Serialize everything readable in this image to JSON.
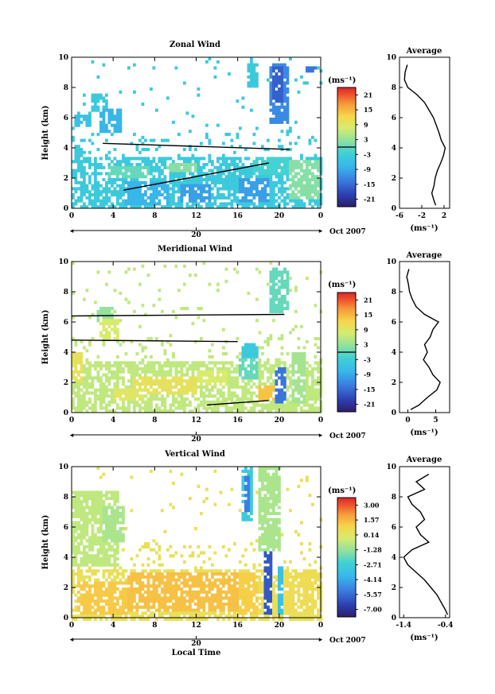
{
  "chart_data": [
    {
      "type": "heatmap",
      "title": "Zonal Wind",
      "ylabel": "Height (km)",
      "xlabel": "",
      "yticks": [
        "0",
        "2",
        "4",
        "6",
        "8",
        "10"
      ],
      "ylim": [
        0,
        10
      ],
      "xticks": [
        "0",
        "4",
        "8",
        "12",
        "16",
        "20",
        "0"
      ],
      "xlim_hours": [
        0,
        24
      ],
      "date_day": "20",
      "date_label": "Oct 2007",
      "colorbar": {
        "unit": "(ms⁻¹)",
        "labels": [
          "21",
          "15",
          "9",
          "3",
          "-3",
          "-9",
          "-15",
          "-21"
        ],
        "range": [
          -24,
          24
        ],
        "zero_line": true
      },
      "profile": {
        "title": "Average",
        "xlabel": "(ms⁻¹)",
        "xticks": [
          "-6",
          "-2",
          "2"
        ],
        "xlim": [
          -6,
          3
        ],
        "heights": [
          0.2,
          0.5,
          1,
          1.5,
          2,
          2.5,
          3,
          3.5,
          4,
          4.5,
          5,
          5.5,
          6,
          6.5,
          7,
          7.5,
          8,
          8.5,
          9,
          9.5
        ],
        "values": [
          0.5,
          0.2,
          -0.2,
          0.2,
          0.4,
          0.8,
          1.4,
          1.9,
          2.2,
          1.5,
          1.1,
          0.6,
          0.1,
          -0.7,
          -1.5,
          -2.8,
          -4.5,
          -5.1,
          -5.0,
          -4.6
        ]
      },
      "bg_value": -4,
      "patches": [
        {
          "t": [
            1.8,
            3.5
          ],
          "h": [
            6.5,
            7.6
          ],
          "v": -4
        },
        {
          "t": [
            2.8,
            4.8
          ],
          "h": [
            5.0,
            6.5
          ],
          "v": -8
        },
        {
          "t": [
            0.2,
            2.0
          ],
          "h": [
            5.4,
            6.2
          ],
          "v": -6
        },
        {
          "t": [
            0.2,
            1.2
          ],
          "h": [
            2.8,
            4.2
          ],
          "v": -4
        },
        {
          "t": [
            3.5,
            7.5
          ],
          "h": [
            2.0,
            2.8
          ],
          "v": 0
        },
        {
          "t": [
            5.0,
            9.5
          ],
          "h": [
            0.2,
            1.8
          ],
          "v": -8
        },
        {
          "t": [
            10.5,
            13.5
          ],
          "h": [
            0.4,
            1.6
          ],
          "v": -10
        },
        {
          "t": [
            13.5,
            16.5
          ],
          "h": [
            1.8,
            2.8
          ],
          "v": -4
        },
        {
          "t": [
            16.0,
            19.0
          ],
          "h": [
            0.4,
            2.0
          ],
          "v": -10
        },
        {
          "t": [
            17.5,
            21.0
          ],
          "h": [
            2.2,
            3.4
          ],
          "v": -2
        },
        {
          "t": [
            19.0,
            21.0
          ],
          "h": [
            5.5,
            9.5
          ],
          "v": -12
        },
        {
          "t": [
            19.2,
            20.4
          ],
          "h": [
            7.0,
            9.3
          ],
          "v": -16
        },
        {
          "t": [
            22.5,
            23.5
          ],
          "h": [
            9.0,
            9.4
          ],
          "v": -14
        },
        {
          "t": [
            17.0,
            18.0
          ],
          "h": [
            8.0,
            9.6
          ],
          "v": -4
        },
        {
          "t": [
            21.0,
            23.8
          ],
          "h": [
            0.5,
            3.2
          ],
          "v": 2
        },
        {
          "t": [
            9.0,
            12.0
          ],
          "h": [
            2.3,
            3.0
          ],
          "v": 2
        }
      ],
      "contours": [
        {
          "t": [
            3.0,
            21.0
          ],
          "h": [
            4.3,
            3.9
          ]
        },
        {
          "t": [
            5.0,
            19.0
          ],
          "h": [
            1.2,
            3.0
          ]
        }
      ]
    },
    {
      "type": "heatmap",
      "title": "Meridional Wind",
      "ylabel": "Height (km)",
      "xlabel": "",
      "yticks": [
        "0",
        "2",
        "4",
        "6",
        "8",
        "10"
      ],
      "ylim": [
        0,
        10
      ],
      "xticks": [
        "0",
        "4",
        "8",
        "12",
        "16",
        "20",
        "0"
      ],
      "xlim_hours": [
        0,
        24
      ],
      "date_day": "20",
      "date_label": "Oct 2007",
      "colorbar": {
        "unit": "(ms⁻¹)",
        "labels": [
          "21",
          "15",
          "9",
          "3",
          "-3",
          "-9",
          "-15",
          "-21"
        ],
        "range": [
          -24,
          24
        ],
        "zero_line": true
      },
      "profile": {
        "title": "Average",
        "xlabel": "(ms⁻¹)",
        "xticks": [
          "0",
          "5"
        ],
        "xlim": [
          -1.5,
          7.5
        ],
        "heights": [
          0.2,
          0.5,
          1,
          1.5,
          2,
          2.5,
          3,
          3.5,
          4,
          4.5,
          5,
          5.5,
          6,
          6.5,
          7,
          7.5,
          8,
          8.5,
          9,
          9.5
        ],
        "values": [
          0.5,
          2.0,
          3.5,
          5.2,
          5.8,
          4.5,
          3.8,
          2.8,
          3.5,
          3.0,
          4.0,
          4.5,
          5.5,
          3.0,
          1.5,
          0.8,
          0.3,
          0.1,
          -0.2,
          0.2
        ]
      },
      "bg_value": 6,
      "patches": [
        {
          "t": [
            6.0,
            12.0
          ],
          "h": [
            1.2,
            2.4
          ],
          "v": 10
        },
        {
          "t": [
            4.0,
            7.0
          ],
          "h": [
            0.8,
            1.6
          ],
          "v": 9
        },
        {
          "t": [
            12.0,
            15.0
          ],
          "h": [
            1.8,
            2.8
          ],
          "v": 8
        },
        {
          "t": [
            16.0,
            18.0
          ],
          "h": [
            2.2,
            3.5
          ],
          "v": 0
        },
        {
          "t": [
            19.5,
            20.6
          ],
          "h": [
            0.5,
            3.0
          ],
          "v": -14
        },
        {
          "t": [
            19.0,
            21.0
          ],
          "h": [
            6.5,
            9.5
          ],
          "v": 0
        },
        {
          "t": [
            2.5,
            4.0
          ],
          "h": [
            6.0,
            7.0
          ],
          "v": 3
        },
        {
          "t": [
            2.8,
            4.5
          ],
          "h": [
            4.8,
            6.2
          ],
          "v": 8
        },
        {
          "t": [
            0.0,
            1.2
          ],
          "h": [
            2.0,
            4.0
          ],
          "v": 10
        },
        {
          "t": [
            21.2,
            22.5
          ],
          "h": [
            0.5,
            4.0
          ],
          "v": 4
        },
        {
          "t": [
            18.0,
            19.5
          ],
          "h": [
            0.8,
            1.8
          ],
          "v": 14
        },
        {
          "t": [
            16.5,
            18.0
          ],
          "h": [
            3.5,
            4.5
          ],
          "v": -4
        }
      ],
      "contours": [
        {
          "t": [
            0.0,
            20.5
          ],
          "h": [
            6.4,
            6.5
          ]
        },
        {
          "t": [
            0.0,
            16.0
          ],
          "h": [
            4.8,
            4.7
          ]
        },
        {
          "t": [
            13.0,
            19.0
          ],
          "h": [
            0.5,
            0.8
          ]
        }
      ]
    },
    {
      "type": "heatmap",
      "title": "Vertical Wind",
      "ylabel": "Height (km)",
      "xlabel": "Local Time",
      "yticks": [
        "0",
        "2",
        "4",
        "6",
        "8",
        "10"
      ],
      "ylim": [
        0,
        10
      ],
      "xticks": [
        "0",
        "4",
        "8",
        "12",
        "16",
        "20",
        "0"
      ],
      "xlim_hours": [
        0,
        24
      ],
      "date_day": "20",
      "date_label": "Oct 2007",
      "colorbar": {
        "unit": "(ms⁻¹)",
        "labels": [
          "3.00",
          "1.57",
          "0.14",
          "-1.28",
          "-2.71",
          "-4.14",
          "-5.57",
          "-7.00"
        ],
        "range": [
          -8.42,
          4.42
        ],
        "zero_line": false
      },
      "profile": {
        "title": "Average",
        "xlabel": "(ms⁻¹)",
        "xticks": [
          "-1.4",
          "-0.4"
        ],
        "xlim": [
          -1.5,
          -0.3
        ],
        "heights": [
          0.2,
          0.5,
          1,
          1.5,
          2,
          2.5,
          3,
          3.5,
          4,
          4.5,
          5,
          5.5,
          6,
          6.5,
          7,
          7.5,
          8,
          8.5,
          9,
          9.5
        ],
        "values": [
          -0.35,
          -0.4,
          -0.5,
          -0.6,
          -0.75,
          -0.9,
          -1.1,
          -1.3,
          -1.4,
          -1.2,
          -0.8,
          -1.0,
          -1.1,
          -0.9,
          -1.0,
          -1.2,
          -1.3,
          -0.9,
          -1.1,
          -0.8
        ]
      },
      "bg_value": 0.8,
      "patches": [
        {
          "t": [
            0.5,
            5.5
          ],
          "h": [
            0.3,
            2.5
          ],
          "v": 1.6
        },
        {
          "t": [
            5.5,
            17.0
          ],
          "h": [
            0.5,
            3.0
          ],
          "v": 1.8
        },
        {
          "t": [
            0.0,
            4.5
          ],
          "h": [
            3.5,
            8.5
          ],
          "v": -0.4
        },
        {
          "t": [
            3.0,
            5.0
          ],
          "h": [
            5.0,
            7.5
          ],
          "v": -0.8
        },
        {
          "t": [
            16.5,
            17.5
          ],
          "h": [
            6.5,
            10.0
          ],
          "v": -3.0
        },
        {
          "t": [
            16.7,
            17.2
          ],
          "h": [
            7.0,
            9.5
          ],
          "v": -5.5
        },
        {
          "t": [
            18.0,
            20.0
          ],
          "h": [
            4.5,
            10.0
          ],
          "v": -0.8
        },
        {
          "t": [
            18.4,
            19.4
          ],
          "h": [
            0.2,
            4.5
          ],
          "v": -6.5
        },
        {
          "t": [
            19.8,
            20.4
          ],
          "h": [
            0.2,
            3.5
          ],
          "v": -3.5
        },
        {
          "t": [
            20.5,
            23.8
          ],
          "h": [
            0.5,
            3.2
          ],
          "v": 1.0
        },
        {
          "t": [
            16.0,
            18.0
          ],
          "h": [
            0.3,
            3.0
          ],
          "v": 1.5
        }
      ],
      "contours": []
    }
  ]
}
